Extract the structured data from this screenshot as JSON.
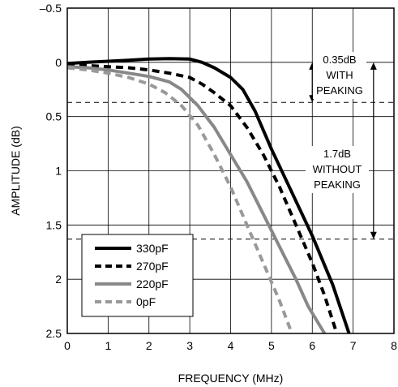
{
  "chart_data": {
    "type": "line",
    "xlabel": "FREQUENCY (MHz)",
    "ylabel": "AMPLITUDE (dB)",
    "xlim": [
      0,
      8
    ],
    "ylim": [
      -0.5,
      2.5
    ],
    "y_inverted": true,
    "x_ticks": [
      "0",
      "1",
      "2",
      "3",
      "4",
      "5",
      "6",
      "7",
      "8"
    ],
    "x_tick_values": [
      0,
      1,
      2,
      3,
      4,
      5,
      6,
      7,
      8
    ],
    "y_ticks": [
      "–0.5",
      "0",
      "0.5",
      "1",
      "1.5",
      "2",
      "2.5"
    ],
    "y_tick_values": [
      -0.5,
      0,
      0.5,
      1,
      1.5,
      2,
      2.5
    ],
    "grid": true,
    "legend_position": "bottom-left",
    "series": [
      {
        "name": "330pF",
        "color": "#000000",
        "dash": "solid",
        "x": [
          0,
          0.5,
          1,
          1.5,
          2,
          2.5,
          3,
          3.3,
          3.6,
          4,
          4.3,
          4.6,
          5,
          5.5,
          6,
          6.5,
          6.9
        ],
        "y": [
          0.01,
          0.0,
          -0.01,
          -0.02,
          -0.03,
          -0.035,
          -0.03,
          0.0,
          0.05,
          0.14,
          0.25,
          0.45,
          0.8,
          1.2,
          1.6,
          2.05,
          2.5
        ]
      },
      {
        "name": "270pF",
        "color": "#000000",
        "dash": "dashed",
        "x": [
          0,
          0.5,
          1,
          1.5,
          2,
          2.5,
          3,
          3.3,
          3.6,
          4,
          4.4,
          4.8,
          5.2,
          5.6,
          6,
          6.3,
          6.6
        ],
        "y": [
          0.02,
          0.03,
          0.04,
          0.05,
          0.07,
          0.1,
          0.14,
          0.2,
          0.28,
          0.4,
          0.6,
          0.85,
          1.15,
          1.5,
          1.85,
          2.15,
          2.5
        ]
      },
      {
        "name": "220pF",
        "color": "#888888",
        "dash": "solid",
        "x": [
          0,
          0.5,
          1,
          1.5,
          2,
          2.5,
          2.8,
          3.2,
          3.6,
          4,
          4.4,
          4.8,
          5.2,
          5.6,
          5.9,
          6.3
        ],
        "y": [
          0.04,
          0.05,
          0.07,
          0.1,
          0.13,
          0.18,
          0.25,
          0.4,
          0.6,
          0.85,
          1.1,
          1.4,
          1.7,
          2.0,
          2.25,
          2.5
        ]
      },
      {
        "name": "0pF",
        "color": "#999999",
        "dash": "dashed",
        "x": [
          0,
          0.5,
          1,
          1.5,
          2,
          2.4,
          2.8,
          3.2,
          3.6,
          4,
          4.4,
          4.8,
          5.2,
          5.5
        ],
        "y": [
          0.05,
          0.07,
          0.1,
          0.14,
          0.2,
          0.28,
          0.4,
          0.58,
          0.85,
          1.15,
          1.5,
          1.85,
          2.2,
          2.5
        ]
      }
    ],
    "reference_lines": [
      0.37,
      1.63
    ],
    "annotations": [
      {
        "lines": [
          "0.35dB",
          "WITH",
          "PEAKING"
        ]
      },
      {
        "lines": [
          "1.7dB",
          "WITHOUT",
          "PEAKING"
        ]
      }
    ]
  }
}
